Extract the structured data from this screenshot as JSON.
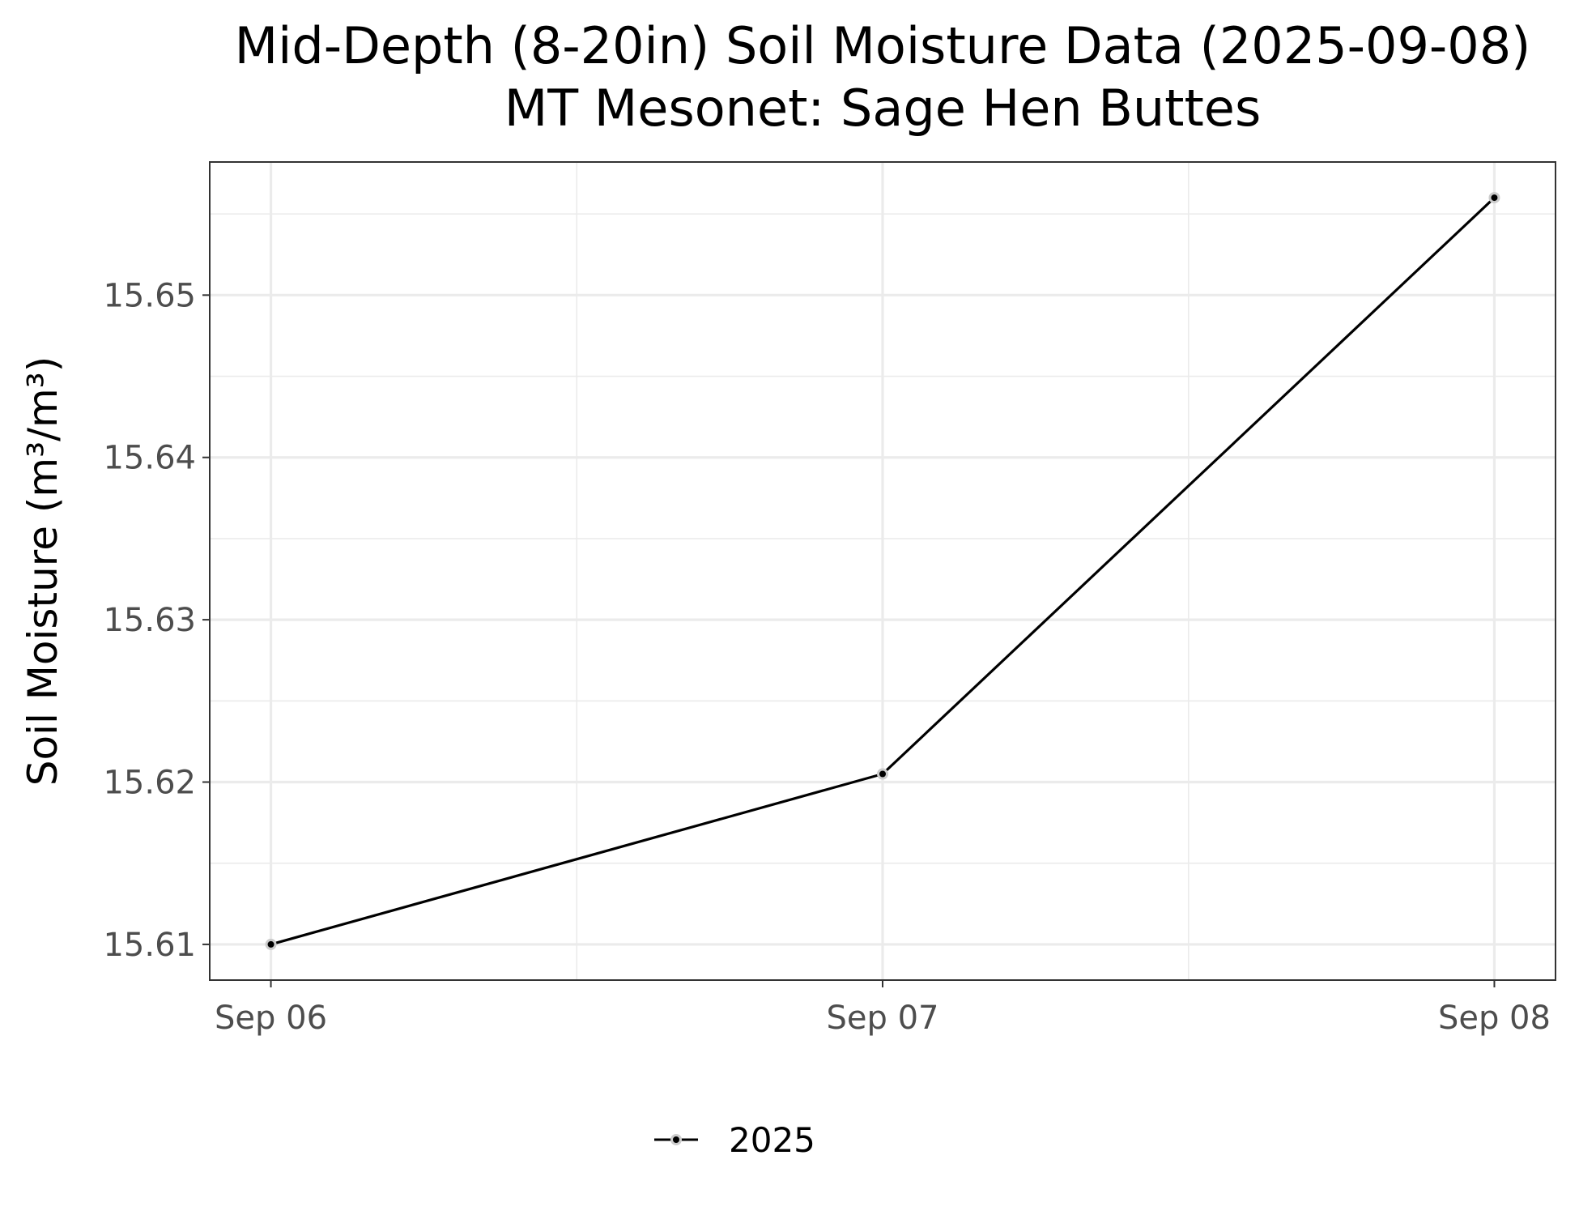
{
  "chart_data": {
    "type": "line",
    "title": "Mid-Depth (8-20in) Soil Moisture Data (2025-09-08)",
    "subtitle": "MT Mesonet: Sage Hen Buttes",
    "xlabel": "",
    "ylabel": "Soil Moisture (m³/m³)",
    "x": [
      "2025-09-06",
      "2025-09-07",
      "2025-09-08"
    ],
    "x_tick_labels": [
      "Sep 06",
      "Sep 07",
      "Sep 08"
    ],
    "series": [
      {
        "name": "2025",
        "values": [
          15.61,
          15.6205,
          15.656
        ]
      }
    ],
    "ylim": [
      15.6078,
      15.6582
    ],
    "y_ticks": [
      15.61,
      15.62,
      15.63,
      15.64,
      15.65
    ],
    "y_tick_labels": [
      "15.61",
      "15.62",
      "15.63",
      "15.64",
      "15.65"
    ],
    "grid": true,
    "legend_position": "bottom",
    "colors": {
      "line": "#000000",
      "grid": "#ebebeb",
      "panel_border": "#333333",
      "point_halo": "#cccccc"
    }
  }
}
